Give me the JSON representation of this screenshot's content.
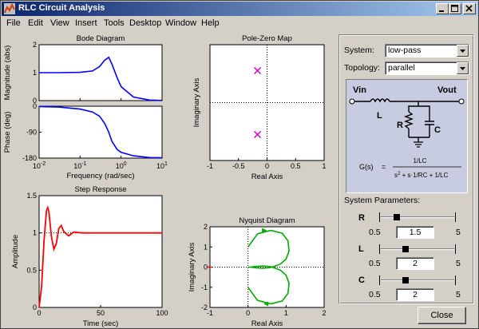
{
  "window": {
    "title": "RLC Circuit Analysis",
    "icon": "matlab-figure-icon"
  },
  "menu": [
    "File",
    "Edit",
    "View",
    "Insert",
    "Tools",
    "Desktop",
    "Window",
    "Help"
  ],
  "controls": {
    "system_label": "System:",
    "system_value": "low-pass",
    "topology_label": "Topology:",
    "topology_value": "parallel"
  },
  "circuit": {
    "vin": "Vin",
    "vout": "Vout",
    "L": "L",
    "R": "R",
    "C": "C",
    "gs": "G(s)",
    "eq": "=",
    "numerator": "1/LC",
    "den_s2": "s",
    "den_exp": "2",
    "den_rest": " + s·1/RC + 1/LC"
  },
  "params": {
    "title": "System Parameters:",
    "items": [
      {
        "name": "R",
        "value": "1.5",
        "min": "0.5",
        "max": "5",
        "level": 0.222
      },
      {
        "name": "L",
        "value": "2",
        "min": "0.5",
        "max": "5",
        "level": 0.333
      },
      {
        "name": "C",
        "value": "2",
        "min": "0.5",
        "max": "5",
        "level": 0.333
      }
    ]
  },
  "close_label": "Close",
  "chart_data": [
    {
      "type": "line",
      "title": "Bode Diagram",
      "panels": [
        {
          "ylabel": "Magnitude (abs)",
          "ylim": [
            0,
            2
          ],
          "yticks": [
            "0",
            "1",
            "2"
          ],
          "series": [
            {
              "color": "#0000ff",
              "x": [
                0.01,
                0.03,
                0.1,
                0.2,
                0.3,
                0.4,
                0.5,
                0.6,
                0.8,
                1,
                2,
                5,
                10
              ],
              "values": [
                1.0,
                1.0,
                1.01,
                1.06,
                1.22,
                1.45,
                1.55,
                1.3,
                0.82,
                0.5,
                0.13,
                0.02,
                0.005
              ]
            }
          ]
        },
        {
          "ylabel": "Phase (deg)",
          "ylim": [
            -180,
            0
          ],
          "yticks": [
            "0",
            "-90",
            "-180"
          ],
          "series": [
            {
              "color": "#0000ff",
              "x": [
                0.01,
                0.03,
                0.1,
                0.2,
                0.3,
                0.4,
                0.5,
                0.6,
                0.8,
                1,
                2,
                5,
                10
              ],
              "values": [
                -1,
                -3,
                -10,
                -20,
                -35,
                -60,
                -90,
                -122,
                -150,
                -160,
                -172,
                -178,
                -179
              ]
            }
          ]
        }
      ],
      "xlabel": "Frequency  (rad/sec)",
      "xscale": "log",
      "xticks": [
        {
          "base": "10",
          "exp": "-2"
        },
        {
          "base": "10",
          "exp": "-1"
        },
        {
          "base": "10",
          "exp": "0"
        },
        {
          "base": "10",
          "exp": "1"
        }
      ]
    },
    {
      "type": "scatter",
      "title": "Pole-Zero Map",
      "xlabel": "Real Axis",
      "ylabel": "Imaginary Axis",
      "xlim": [
        -1,
        1
      ],
      "xticks": [
        "-1",
        "-0.5",
        "0",
        "0.5",
        "1"
      ],
      "series": [
        {
          "marker": "x",
          "color": "#cc00cc",
          "points": [
            [
              -0.167,
              0.5
            ],
            [
              -0.167,
              -0.5
            ]
          ]
        }
      ]
    },
    {
      "type": "line",
      "title": "Step Response",
      "xlabel": "Time (sec)",
      "ylabel": "Amplitude",
      "xlim": [
        0,
        100
      ],
      "ylim": [
        0,
        1.5
      ],
      "xticks": [
        "0",
        "50",
        "100"
      ],
      "yticks": [
        "0",
        "0.5",
        "1",
        "1.5"
      ],
      "series": [
        {
          "color": "#ff0000",
          "x": [
            0,
            2,
            4,
            6,
            7,
            8,
            10,
            12,
            14,
            16,
            18,
            20,
            24,
            28,
            35,
            50,
            100
          ],
          "values": [
            0,
            0.28,
            0.9,
            1.3,
            1.34,
            1.28,
            0.95,
            0.78,
            0.86,
            1.06,
            1.1,
            1.02,
            0.96,
            1.01,
            1.0,
            1.0,
            1.0
          ]
        }
      ]
    },
    {
      "type": "line",
      "title": "Nyquist Diagram",
      "xlabel": "Real Axis",
      "ylabel": "Imaginary Axis",
      "xlim": [
        -1,
        2
      ],
      "ylim": [
        -2,
        2
      ],
      "xticks": [
        "-1",
        "0",
        "1",
        "2"
      ],
      "yticks": [
        "-2",
        "-1",
        "0",
        "1",
        "2"
      ],
      "series": [
        {
          "color": "#00aa00",
          "x": [
            0,
            0.25,
            0.6,
            0.9,
            1.05,
            1.08,
            1.0,
            0.85,
            0.6,
            0.4,
            0.2,
            0.06,
            0.02,
            0.06,
            0.2,
            0.4,
            0.6,
            0.85,
            1.0,
            1.08,
            1.05,
            0.9,
            0.6,
            0.25,
            0
          ],
          "values": [
            1.0,
            1.65,
            1.82,
            1.68,
            1.3,
            0.8,
            0.4,
            0.15,
            -0.02,
            -0.06,
            -0.03,
            0.0,
            0.0,
            0.0,
            0.03,
            0.06,
            0.02,
            -0.15,
            -0.4,
            -0.8,
            -1.3,
            -1.68,
            -1.82,
            -1.65,
            -1.0
          ]
        }
      ]
    }
  ]
}
